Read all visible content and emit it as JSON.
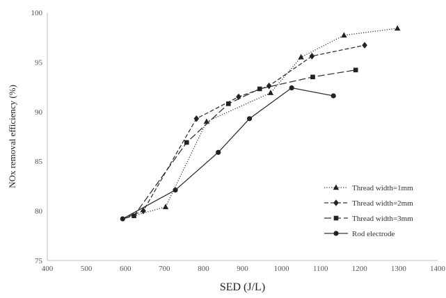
{
  "chart_data": {
    "type": "line",
    "xlabel": "SED (J/L)",
    "ylabel": "NOx removal efficiency (%)",
    "xlim": [
      400,
      1400
    ],
    "ylim": [
      75,
      100
    ],
    "xticks": [
      400,
      500,
      600,
      700,
      800,
      900,
      1000,
      1100,
      1200,
      1300,
      1400
    ],
    "yticks": [
      75,
      80,
      85,
      90,
      95,
      100
    ],
    "grid": false,
    "legend_position": "bottom-right",
    "series": [
      {
        "name": "Thread width=1mm",
        "marker": "triangle",
        "dash": "dotted",
        "x": [
          593,
          703,
          808,
          972,
          1050,
          1160,
          1297
        ],
        "y": [
          79.2,
          80.4,
          89.0,
          91.9,
          95.5,
          97.7,
          98.4
        ]
      },
      {
        "name": "Thread width=2mm",
        "marker": "diamond",
        "dash": "dashed",
        "x": [
          593,
          646,
          782,
          890,
          968,
          1078,
          1213
        ],
        "y": [
          79.2,
          80.0,
          89.3,
          91.5,
          92.6,
          95.6,
          96.7
        ]
      },
      {
        "name": "Thread width=3mm",
        "marker": "square",
        "dash": "longdash",
        "x": [
          593,
          622,
          757,
          864,
          944,
          1080,
          1190
        ],
        "y": [
          79.2,
          79.5,
          86.9,
          90.8,
          92.3,
          93.5,
          94.2
        ]
      },
      {
        "name": "Rod electrode",
        "marker": "circle",
        "dash": "solid",
        "x": [
          593,
          728,
          838,
          918,
          1026,
          1133
        ],
        "y": [
          79.2,
          82.1,
          85.9,
          89.3,
          92.4,
          91.6
        ]
      }
    ]
  }
}
